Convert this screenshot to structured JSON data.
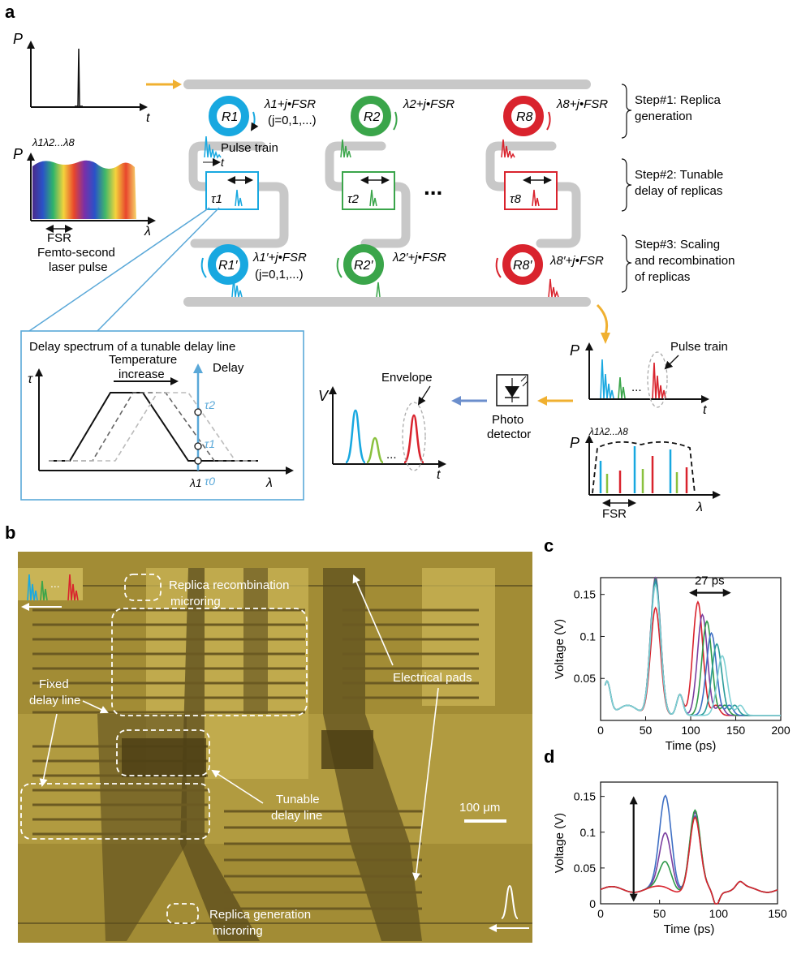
{
  "panels": {
    "a": "a",
    "b": "b",
    "c": "c",
    "d": "d"
  },
  "colors": {
    "blue": "#18a8e0",
    "green": "#3aa54a",
    "red": "#d9232d",
    "grey": "#c8c8c8",
    "lightblue": "#5aa8d8",
    "gold": "#f0b030",
    "arrowblue": "#6b8ecc"
  },
  "icons": [
    "yellow-arrow-icon",
    "photodetector-icon",
    "blue-arrow-icon",
    "white-arrow-icon"
  ],
  "panel_a": {
    "axis_P": "P",
    "axis_t": "t",
    "axis_lambda": "λ",
    "spectrum_lambdas": "λ1λ2...λ8",
    "fsr": "FSR",
    "femto_line1": "Femto-second",
    "femto_line2": "laser pulse",
    "ring_top": [
      "R1",
      "R2",
      "R8"
    ],
    "ring_bottom": [
      "R1′",
      "R2′",
      "R8′"
    ],
    "res_top": [
      "λ1+j•FSR",
      "λ2+j•FSR",
      "λ8+j•FSR"
    ],
    "res_bottom": [
      "λ1′+j•FSR",
      "λ2′+j•FSR",
      "λ8′+j•FSR"
    ],
    "j_note": "(j=0,1,...)",
    "pulse_train_label": "Pulse train",
    "tau": [
      "τ1",
      "τ2",
      "τ8"
    ],
    "dots": "...",
    "step1": [
      "Step#1: Replica",
      "generation"
    ],
    "step2": [
      "Step#2: Tunable",
      "delay of replicas"
    ],
    "step3": [
      "Step#3: Scaling",
      "and recombination",
      "of replicas"
    ],
    "inset_title": "Delay spectrum of a tunable delay line",
    "inset_tau": "τ",
    "inset_lambda": "λ",
    "inset_lambda1": "λ1",
    "temp_line1": "Temperature",
    "temp_line2": "increase",
    "delay_label": "Delay",
    "tau_levels": [
      "τ2",
      "τ1",
      "τ0"
    ],
    "envelope": "Envelope",
    "axis_V": "V",
    "photo_line1": "Photo",
    "photo_line2": "detector",
    "pulse_train2": "Pulse train",
    "lambda_bottom": "λ1λ2...λ8"
  },
  "panel_b": {
    "replica_recomb_1": "Replica recombination",
    "replica_recomb_2": "microring",
    "fixed_1": "Fixed",
    "fixed_2": "delay line",
    "tunable_1": "Tunable",
    "tunable_2": "delay line",
    "electrical_pads": "Electrical pads",
    "scale_bar": "100 μm",
    "replica_gen_1": "Replica generation",
    "replica_gen_2": "microring",
    "dots": "..."
  },
  "chart_data": [
    {
      "type": "line",
      "panel": "c",
      "xlabel": "Time (ps)",
      "ylabel": "Voltage (V)",
      "xlim": [
        0,
        200
      ],
      "ylim": [
        0,
        0.17
      ],
      "xticks": [
        0,
        50,
        100,
        150,
        200
      ],
      "yticks": [
        0.05,
        0.1,
        0.15
      ],
      "annotation": "27 ps",
      "series": [
        {
          "color": "#d9232d",
          "delay": 108,
          "amp": 0.135,
          "main": 0.128
        },
        {
          "color": "#7b3fa0",
          "delay": 113,
          "amp": 0.12,
          "main": 0.165
        },
        {
          "color": "#2f9a4a",
          "delay": 118,
          "amp": 0.112,
          "main": 0.162
        },
        {
          "color": "#3e6fc4",
          "delay": 123,
          "amp": 0.098,
          "main": 0.16
        },
        {
          "color": "#2a9c9a",
          "delay": 129,
          "amp": 0.085,
          "main": 0.158
        },
        {
          "color": "#7fd0d4",
          "delay": 135,
          "amp": 0.071,
          "main": 0.155
        }
      ]
    },
    {
      "type": "line",
      "panel": "d",
      "xlabel": "Time (ps)",
      "ylabel": "Voltage (V)",
      "xlim": [
        0,
        150
      ],
      "ylim": [
        0,
        0.17
      ],
      "xticks": [
        0,
        50,
        100,
        150
      ],
      "yticks": [
        0,
        0.05,
        0.1,
        0.15
      ],
      "series": [
        {
          "color": "#3e6fc4",
          "first": 0.15,
          "second": 0.12
        },
        {
          "color": "#7b3fa0",
          "first": 0.098,
          "second": 0.125
        },
        {
          "color": "#2f9a4a",
          "first": 0.058,
          "second": 0.128
        },
        {
          "color": "#d9232d",
          "first": 0.022,
          "second": 0.118
        }
      ]
    }
  ]
}
